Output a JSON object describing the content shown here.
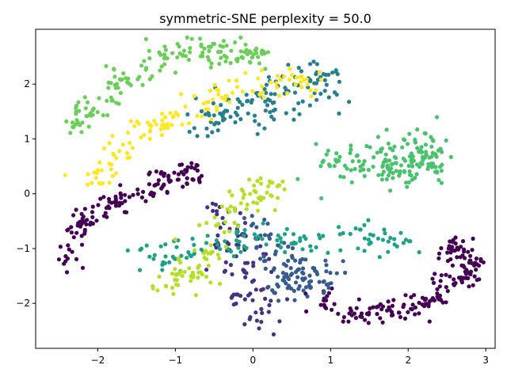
{
  "chart_data": {
    "type": "scatter",
    "title": "symmetric-SNE perplexity = 50.0",
    "xlabel": "",
    "ylabel": "",
    "xlim": [
      -2.8,
      3.12
    ],
    "ylim": [
      -2.82,
      3.0
    ],
    "x_ticks": [
      -2,
      -1,
      0,
      1,
      2,
      3
    ],
    "y_ticks": [
      -2,
      -1,
      0,
      1,
      2
    ],
    "x_tick_labels": [
      "−2",
      "−1",
      "0",
      "1",
      "2",
      "3"
    ],
    "y_tick_labels": [
      "−2",
      "−1",
      "0",
      "1",
      "2"
    ],
    "grid": false,
    "legend": "none",
    "marker_size": 4,
    "clusters": [
      {
        "color": "#440154",
        "approx_points": 140,
        "path": [
          [
            -2.45,
            -1.3
          ],
          [
            -2.3,
            -0.6
          ],
          [
            -2.0,
            -0.3
          ],
          [
            -1.5,
            0.0
          ],
          [
            -1.0,
            0.3
          ],
          [
            -0.7,
            0.4
          ]
        ],
        "spread": 0.12
      },
      {
        "color": "#440154",
        "approx_points": 180,
        "path": [
          [
            0.8,
            -1.9
          ],
          [
            1.5,
            -2.2
          ],
          [
            2.0,
            -2.1
          ],
          [
            2.4,
            -1.9
          ],
          [
            2.75,
            -1.5
          ],
          [
            2.8,
            -1.2
          ],
          [
            2.5,
            -0.9
          ]
        ],
        "spread": 0.1
      },
      {
        "color": "#46327e",
        "approx_points": 90,
        "path": [
          [
            -0.5,
            -0.3
          ],
          [
            -0.2,
            -0.9
          ],
          [
            0.0,
            -1.6
          ],
          [
            0.0,
            -2.4
          ]
        ],
        "spread": 0.18
      },
      {
        "color": "#365c8d",
        "approx_points": 110,
        "path": [
          [
            0.1,
            -0.5
          ],
          [
            0.3,
            -1.2
          ],
          [
            0.5,
            -1.7
          ],
          [
            0.8,
            -1.4
          ]
        ],
        "spread": 0.2
      },
      {
        "color": "#277f8e",
        "approx_points": 130,
        "path": [
          [
            -0.8,
            1.2
          ],
          [
            -0.3,
            1.5
          ],
          [
            0.2,
            1.7
          ],
          [
            0.6,
            1.9
          ],
          [
            0.9,
            2.1
          ]
        ],
        "spread": 0.2
      },
      {
        "color": "#1fa187",
        "approx_points": 120,
        "path": [
          [
            -1.4,
            -1.1
          ],
          [
            -0.9,
            -1.1
          ],
          [
            0.1,
            -0.8
          ],
          [
            0.8,
            -0.9
          ],
          [
            1.4,
            -0.7
          ],
          [
            1.9,
            -0.9
          ]
        ],
        "spread": 0.15
      },
      {
        "color": "#4ac16d",
        "approx_points": 170,
        "path": [
          [
            1.0,
            0.6
          ],
          [
            1.5,
            0.5
          ],
          [
            2.0,
            0.4
          ],
          [
            2.3,
            0.7
          ],
          [
            1.9,
            1.0
          ]
        ],
        "spread": 0.18
      },
      {
        "color": "#6ccd5a",
        "approx_points": 160,
        "path": [
          [
            -2.3,
            1.2
          ],
          [
            -2.0,
            1.7
          ],
          [
            -1.5,
            2.2
          ],
          [
            -1.0,
            2.6
          ],
          [
            -0.4,
            2.6
          ],
          [
            0.1,
            2.5
          ]
        ],
        "spread": 0.12
      },
      {
        "color": "#b5de2b",
        "approx_points": 110,
        "path": [
          [
            -1.2,
            -1.7
          ],
          [
            -0.8,
            -1.5
          ],
          [
            -0.3,
            -0.4
          ],
          [
            0.0,
            0.0
          ],
          [
            0.3,
            0.1
          ]
        ],
        "spread": 0.14
      },
      {
        "color": "#fde725",
        "approx_points": 130,
        "path": [
          [
            -2.1,
            0.1
          ],
          [
            -1.6,
            1.0
          ],
          [
            -0.9,
            1.4
          ],
          [
            -0.3,
            1.8
          ],
          [
            0.2,
            2.0
          ],
          [
            0.8,
            2.1
          ]
        ],
        "spread": 0.13
      }
    ]
  }
}
